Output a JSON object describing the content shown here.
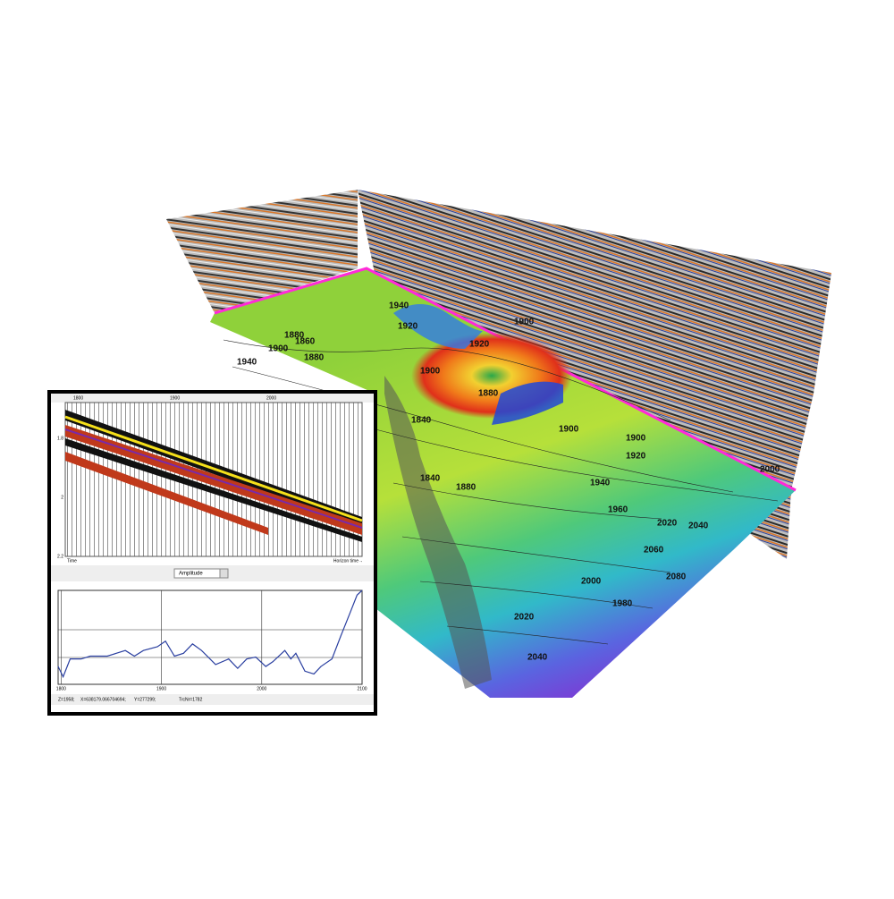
{
  "scene": {
    "contour_labels": [
      "1880",
      "1900",
      "1940",
      "1860",
      "1880",
      "1900",
      "1840",
      "1920",
      "1940",
      "1920",
      "1900",
      "1880",
      "1840",
      "1880",
      "1900",
      "1900",
      "1920",
      "1940",
      "1960",
      "2000",
      "2020",
      "2040",
      "2060",
      "2080",
      "2000",
      "2020",
      "2040",
      "1980"
    ]
  },
  "inset": {
    "seismic": {
      "top_ticks": [
        "1800",
        "1900",
        "2000"
      ],
      "left_ticks": [
        "1.8",
        "2",
        "2.2"
      ],
      "time_label": "Time",
      "horizon_label": "Horizon time→"
    },
    "selector": "Amplitude",
    "amplitude_plot": {
      "type": "line",
      "color": "#2a3fa0",
      "x": [
        1797,
        1802,
        1809,
        1820,
        1829,
        1846,
        1855,
        1864,
        1873,
        1882,
        1896,
        1904,
        1913,
        1922,
        1931,
        1940,
        1954,
        1967,
        1976,
        1985,
        1994,
        2004,
        2011,
        2023,
        2029,
        2034,
        2043,
        2052,
        2059,
        2070,
        2079,
        2088,
        2095,
        2100
      ],
      "values": [
        19,
        8,
        27,
        27,
        30,
        30,
        33,
        36,
        30,
        36,
        40,
        46,
        30,
        33,
        43,
        36,
        21,
        27,
        17,
        27,
        29,
        19,
        24,
        36,
        27,
        33,
        14,
        11,
        19,
        27,
        52,
        76,
        95,
        100
      ],
      "xlim": [
        1797,
        2100
      ],
      "ylim": [
        0,
        100
      ],
      "xticks": [
        1800,
        1900,
        2000,
        2100
      ]
    },
    "status": [
      "Z=1958;",
      "X=638179.066704694;",
      "Y=277299;",
      "TrcNr=1782"
    ]
  }
}
